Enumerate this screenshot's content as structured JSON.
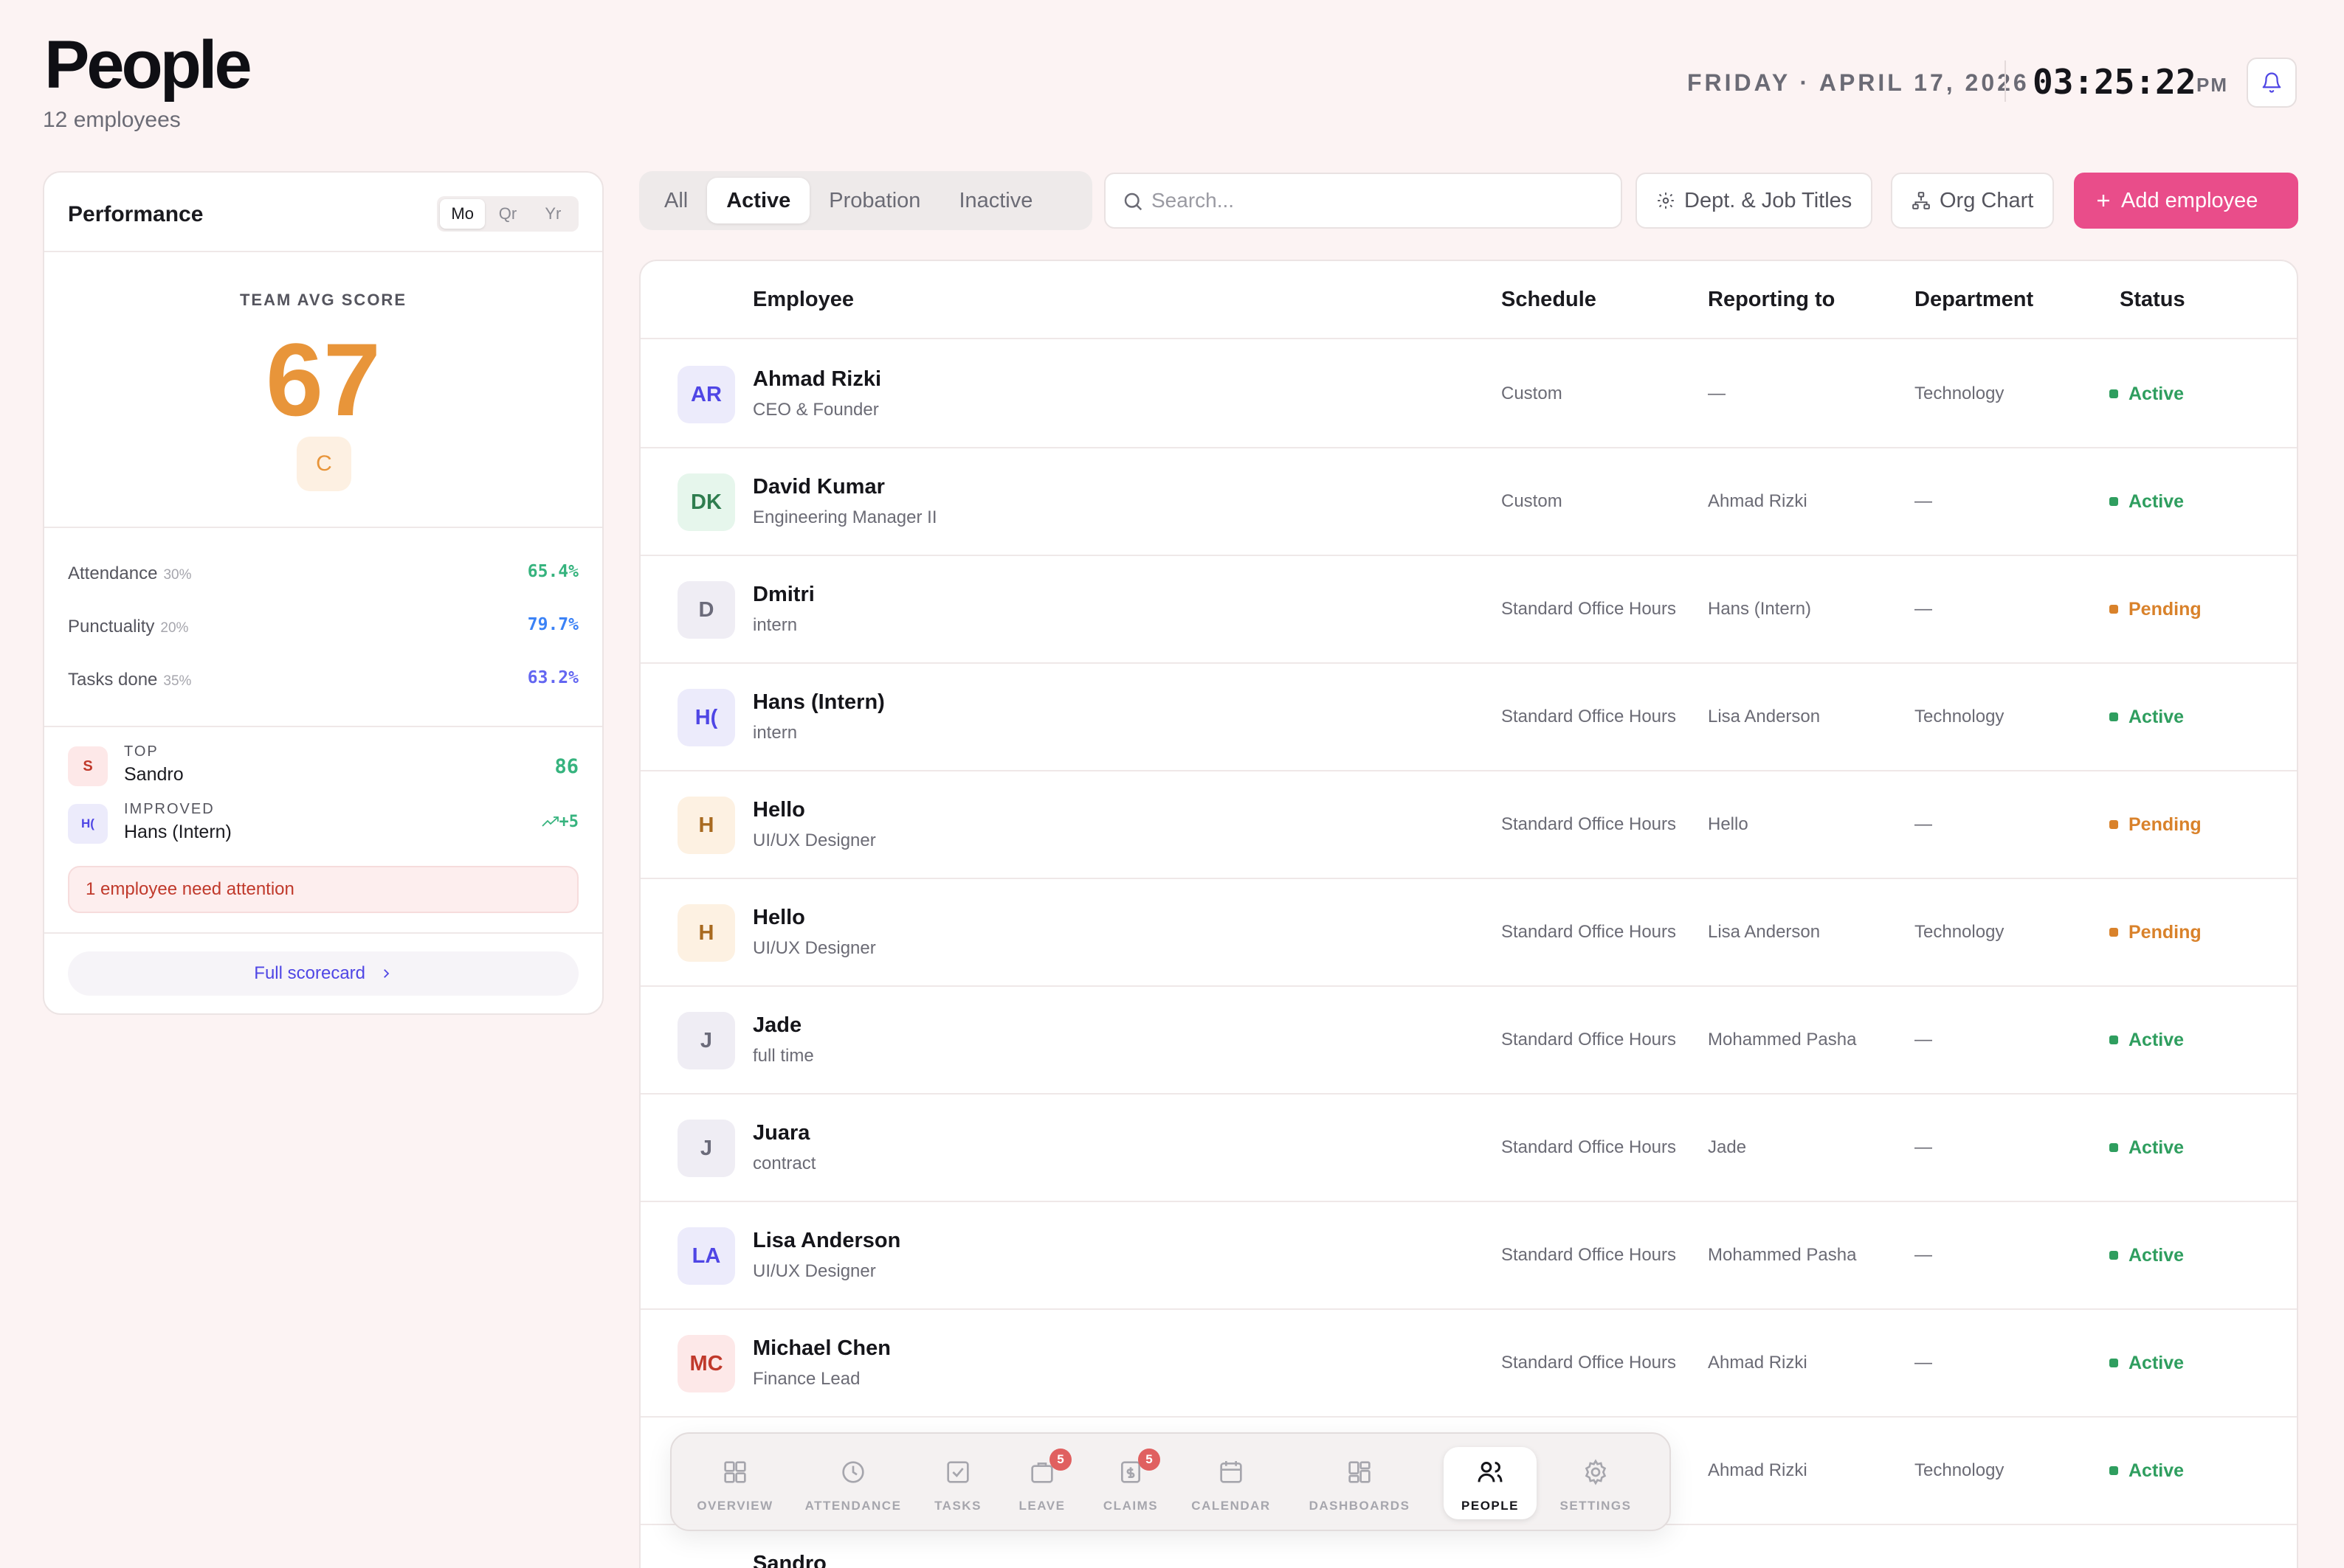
{
  "header": {
    "title": "People",
    "subtitle": "12 employees",
    "date": "FRIDAY · APRIL 17, 2026",
    "time": "03:25:22",
    "ampm": "PM"
  },
  "performance": {
    "title": "Performance",
    "periods": [
      "Mo",
      "Qr",
      "Yr"
    ],
    "selected_period": "Mo",
    "avg_label": "TEAM AVG SCORE",
    "avg_score": "67",
    "grade": "C",
    "metrics": [
      {
        "label": "Attendance",
        "weight": "30%",
        "value": "65.4%",
        "color": "#36b37e"
      },
      {
        "label": "Punctuality",
        "weight": "20%",
        "value": "79.7%",
        "color": "#3b82f6"
      },
      {
        "label": "Tasks done",
        "weight": "35%",
        "value": "63.2%",
        "color": "#6366f1"
      }
    ],
    "top": {
      "kicker": "TOP",
      "initials": "S",
      "name": "Sandro",
      "value": "86"
    },
    "improved": {
      "kicker": "IMPROVED",
      "initials": "H(",
      "name": "Hans (Intern)",
      "value": "+5"
    },
    "alert": "1 employee need attention",
    "full_scorecard": "Full scorecard"
  },
  "filters": {
    "tabs": [
      "All",
      "Active",
      "Probation",
      "Inactive"
    ],
    "selected": "Active",
    "search_placeholder": "Search...",
    "dept_button": "Dept. & Job Titles",
    "org_button": "Org Chart",
    "add_button": "Add employee"
  },
  "table": {
    "columns": [
      "Employee",
      "Schedule",
      "Reporting to",
      "Department",
      "Status"
    ],
    "rows": [
      {
        "initials": "AR",
        "name": "Ahmad Rizki",
        "title": "CEO & Founder",
        "schedule": "Custom",
        "reporting": "—",
        "department": "Technology",
        "status": "Active"
      },
      {
        "initials": "DK",
        "name": "David Kumar",
        "title": "Engineering Manager II",
        "schedule": "Custom",
        "reporting": "Ahmad Rizki",
        "department": "—",
        "status": "Active"
      },
      {
        "initials": "D",
        "name": "Dmitri",
        "title": "intern",
        "schedule": "Standard Office Hours",
        "reporting": "Hans (Intern)",
        "department": "—",
        "status": "Pending"
      },
      {
        "initials": "H(",
        "name": "Hans (Intern)",
        "title": "intern",
        "schedule": "Standard Office Hours",
        "reporting": "Lisa Anderson",
        "department": "Technology",
        "status": "Active"
      },
      {
        "initials": "H",
        "name": "Hello",
        "title": "UI/UX Designer",
        "schedule": "Standard Office Hours",
        "reporting": "Hello",
        "department": "—",
        "status": "Pending"
      },
      {
        "initials": "H",
        "name": "Hello",
        "title": "UI/UX Designer",
        "schedule": "Standard Office Hours",
        "reporting": "Lisa Anderson",
        "department": "Technology",
        "status": "Pending"
      },
      {
        "initials": "J",
        "name": "Jade",
        "title": "full time",
        "schedule": "Standard Office Hours",
        "reporting": "Mohammed Pasha",
        "department": "—",
        "status": "Active"
      },
      {
        "initials": "J",
        "name": "Juara",
        "title": "contract",
        "schedule": "Standard Office Hours",
        "reporting": "Jade",
        "department": "—",
        "status": "Active"
      },
      {
        "initials": "LA",
        "name": "Lisa Anderson",
        "title": "UI/UX Designer",
        "schedule": "Standard Office Hours",
        "reporting": "Mohammed Pasha",
        "department": "—",
        "status": "Active"
      },
      {
        "initials": "MC",
        "name": "Michael Chen",
        "title": "Finance Lead",
        "schedule": "Standard Office Hours",
        "reporting": "Ahmad Rizki",
        "department": "—",
        "status": "Active"
      },
      {
        "initials": "",
        "name": "",
        "title": "",
        "schedule": "rs",
        "reporting": "Ahmad Rizki",
        "department": "Technology",
        "status": "Active"
      },
      {
        "initials": "",
        "name": "Sandro",
        "title": "",
        "schedule": "",
        "reporting": "",
        "department": "",
        "status": ""
      }
    ]
  },
  "nav": [
    {
      "label": "OVERVIEW",
      "icon": "overview-icon",
      "badge": ""
    },
    {
      "label": "ATTENDANCE",
      "icon": "clock-icon",
      "badge": ""
    },
    {
      "label": "TASKS",
      "icon": "tasks-icon",
      "badge": ""
    },
    {
      "label": "LEAVE",
      "icon": "leave-icon",
      "badge": "5"
    },
    {
      "label": "CLAIMS",
      "icon": "claims-icon",
      "badge": "5"
    },
    {
      "label": "CALENDAR",
      "icon": "calendar-icon",
      "badge": ""
    },
    {
      "label": "DASHBOARDS",
      "icon": "dashboards-icon",
      "badge": ""
    },
    {
      "label": "PEOPLE",
      "icon": "people-icon",
      "badge": ""
    },
    {
      "label": "SETTINGS",
      "icon": "settings-icon",
      "badge": ""
    }
  ],
  "nav_selected": "PEOPLE",
  "colors": {
    "accent": "#e94d8a",
    "score": "#e8953a",
    "active": "#2f9e5f",
    "pending": "#d9822b"
  }
}
